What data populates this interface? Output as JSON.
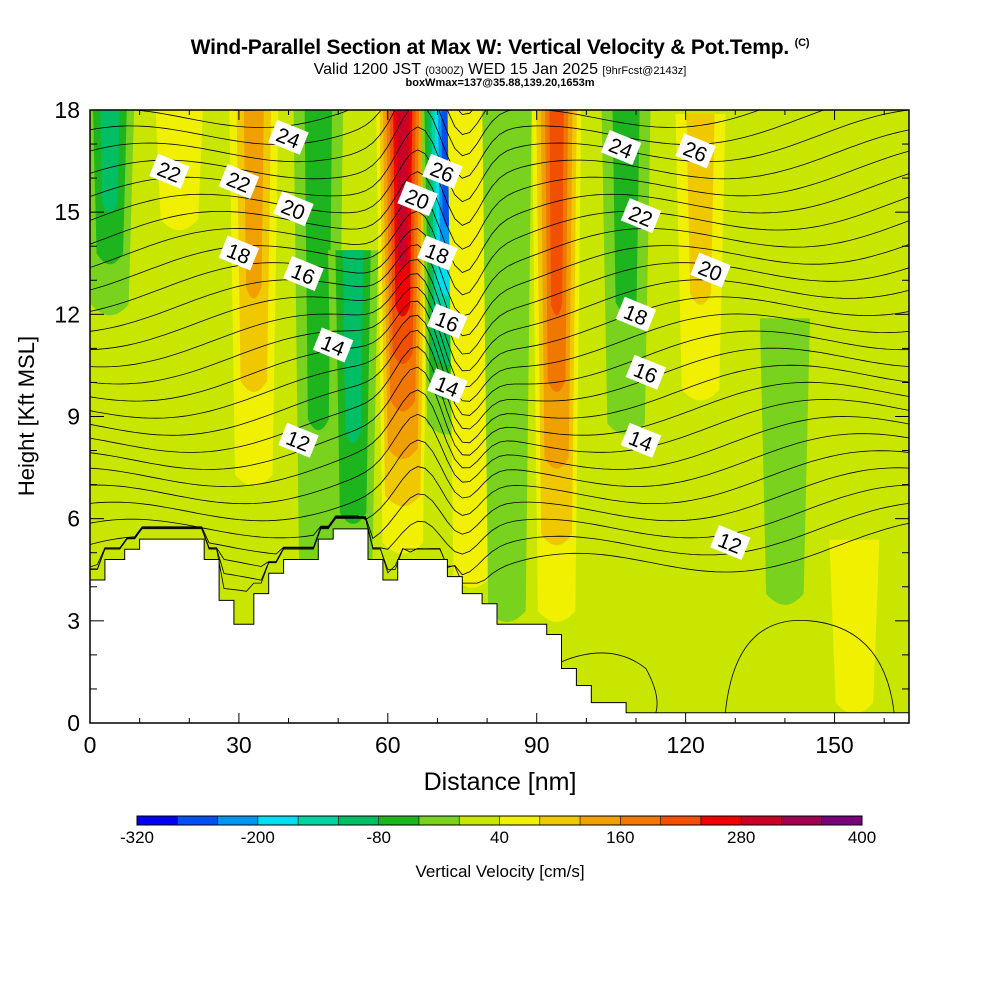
{
  "header": {
    "title": "Wind-Parallel Section at Max W: Vertical Velocity & Pot.Temp.",
    "copyright": "(C)",
    "valid_main": "Valid 1200 JST",
    "valid_utc": "(0300Z)",
    "valid_date": "WED 15 Jan 2025",
    "forecast": "[9hrFcst@2143z]",
    "box_info": "boxWmax=137@35.88,139.20,1653m"
  },
  "chart_data": {
    "type": "heatmap",
    "xlabel": "Distance [nm]",
    "ylabel": "Height [Kft MSL]",
    "xlim": [
      0,
      165
    ],
    "ylim": [
      0,
      18
    ],
    "x_ticks": [
      0,
      30,
      60,
      90,
      120,
      150
    ],
    "y_ticks": [
      0,
      3,
      6,
      9,
      12,
      15,
      18
    ],
    "grid": false,
    "colorbar": {
      "label": "Vertical Velocity [cm/s]",
      "min": -320,
      "max": 400,
      "step": 40,
      "tick_labels": [
        "-320",
        "-200",
        "-80",
        "40",
        "160",
        "280",
        "400"
      ],
      "colors": [
        "#0000f0",
        "#0050f0",
        "#0096f0",
        "#00dcf0",
        "#00d2a0",
        "#00be64",
        "#1eb41e",
        "#78d21e",
        "#c8e600",
        "#f0f000",
        "#f0c800",
        "#f0a000",
        "#f07800",
        "#f05000",
        "#f00000",
        "#c80028",
        "#a00050",
        "#780078"
      ]
    },
    "velocity_features": [
      {
        "x": 4,
        "top": 18,
        "bottom": 12,
        "value": -100
      },
      {
        "x": 18,
        "top": 18,
        "bottom": 14.5,
        "value": 0
      },
      {
        "x": 33,
        "top": 18,
        "bottom": 7,
        "value": 100
      },
      {
        "x": 46,
        "top": 18,
        "bottom": 3,
        "value": -80
      },
      {
        "x": 53,
        "top": 13,
        "bottom": 3.5,
        "value": -100
      },
      {
        "x": 63,
        "top": 18,
        "bottom": 5,
        "value": 290
      },
      {
        "x": 72,
        "top": 18,
        "bottom": 8.5,
        "value": -290
      },
      {
        "x": 77,
        "top": 18,
        "bottom": 4,
        "value": 0
      },
      {
        "x": 84,
        "top": 18,
        "bottom": 3,
        "value": -40
      },
      {
        "x": 94,
        "top": 18,
        "bottom": 3,
        "value": 200
      },
      {
        "x": 108,
        "top": 18,
        "bottom": 8.5,
        "value": -80
      },
      {
        "x": 123,
        "top": 17,
        "bottom": 9.5,
        "value": 80
      },
      {
        "x": 140,
        "top": 11,
        "bottom": 3.5,
        "value": -20
      },
      {
        "x": 154,
        "top": 4.5,
        "bottom": 0.3,
        "value": 0
      }
    ],
    "contour_labels": [
      {
        "x": 16,
        "y": 16.2,
        "text": "22"
      },
      {
        "x": 30,
        "y": 15.9,
        "text": "22"
      },
      {
        "x": 40,
        "y": 17.2,
        "text": "24"
      },
      {
        "x": 41,
        "y": 15.1,
        "text": "20"
      },
      {
        "x": 30,
        "y": 13.8,
        "text": "18"
      },
      {
        "x": 43,
        "y": 13.2,
        "text": "16"
      },
      {
        "x": 49,
        "y": 11.1,
        "text": "14"
      },
      {
        "x": 42,
        "y": 8.3,
        "text": "12"
      },
      {
        "x": 66,
        "y": 15.4,
        "text": "20"
      },
      {
        "x": 71,
        "y": 16.2,
        "text": "26"
      },
      {
        "x": 70,
        "y": 13.8,
        "text": "18"
      },
      {
        "x": 72,
        "y": 11.8,
        "text": "16"
      },
      {
        "x": 72,
        "y": 9.9,
        "text": "14"
      },
      {
        "x": 107,
        "y": 16.9,
        "text": "24"
      },
      {
        "x": 122,
        "y": 16.8,
        "text": "26"
      },
      {
        "x": 111,
        "y": 14.9,
        "text": "22"
      },
      {
        "x": 125,
        "y": 13.3,
        "text": "20"
      },
      {
        "x": 110,
        "y": 12.0,
        "text": "18"
      },
      {
        "x": 112,
        "y": 10.3,
        "text": "16"
      },
      {
        "x": 111,
        "y": 8.3,
        "text": "14"
      },
      {
        "x": 129,
        "y": 5.3,
        "text": "12"
      }
    ],
    "terrain": [
      [
        0,
        4.2
      ],
      [
        3,
        4.2
      ],
      [
        3,
        4.8
      ],
      [
        7,
        4.8
      ],
      [
        7,
        5.1
      ],
      [
        10,
        5.1
      ],
      [
        10,
        5.4
      ],
      [
        23,
        5.4
      ],
      [
        23,
        4.8
      ],
      [
        26,
        4.8
      ],
      [
        26,
        3.6
      ],
      [
        29,
        3.6
      ],
      [
        29,
        2.9
      ],
      [
        33,
        2.9
      ],
      [
        33,
        3.8
      ],
      [
        36,
        3.8
      ],
      [
        36,
        4.4
      ],
      [
        39,
        4.4
      ],
      [
        39,
        4.8
      ],
      [
        46,
        4.8
      ],
      [
        46,
        5.4
      ],
      [
        49,
        5.4
      ],
      [
        49,
        5.7
      ],
      [
        56,
        5.7
      ],
      [
        56,
        4.8
      ],
      [
        59,
        4.8
      ],
      [
        59,
        4.2
      ],
      [
        62,
        4.2
      ],
      [
        62,
        4.8
      ],
      [
        72,
        4.8
      ],
      [
        72,
        4.3
      ],
      [
        75,
        4.3
      ],
      [
        75,
        3.8
      ],
      [
        79,
        3.8
      ],
      [
        79,
        3.5
      ],
      [
        82,
        3.5
      ],
      [
        82,
        2.9
      ],
      [
        92,
        2.9
      ],
      [
        92,
        2.6
      ],
      [
        95,
        2.6
      ],
      [
        95,
        1.6
      ],
      [
        98,
        1.6
      ],
      [
        98,
        1.1
      ],
      [
        101,
        1.1
      ],
      [
        101,
        0.6
      ],
      [
        108,
        0.6
      ],
      [
        108,
        0.3
      ],
      [
        165,
        0.3
      ]
    ]
  }
}
